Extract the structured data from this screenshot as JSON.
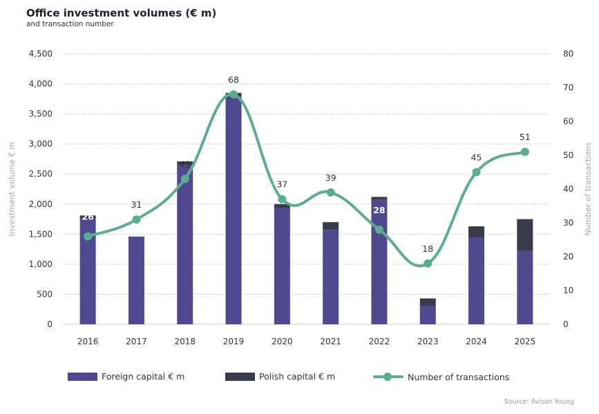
{
  "header": {
    "title": "Office investment volumes (€ m)",
    "subtitle": "and transaction number"
  },
  "source": "Source: Avison Young",
  "colors": {
    "foreign": "#51498f",
    "polish": "#373b4b",
    "transactions": "#5aae8f",
    "grid": "#cfcfcf"
  },
  "legend": {
    "foreign": "Foreign capital € m",
    "polish": "Polish capital € m",
    "transactions": "Number of transactions"
  },
  "chart_data": {
    "type": "bar",
    "title": "Office investment volumes (€ m)",
    "subtitle": "and transaction number",
    "categories": [
      "2016",
      "2017",
      "2018",
      "2019",
      "2020",
      "2021",
      "2022",
      "2023",
      "2024",
      "2025"
    ],
    "series": [
      {
        "name": "Foreign capital € m",
        "type": "bar",
        "stacked": true,
        "axis": "left",
        "values": [
          1760,
          1460,
          2650,
          3780,
          1940,
          1570,
          2070,
          310,
          1440,
          1220
        ]
      },
      {
        "name": "Polish capital € m",
        "type": "bar",
        "stacked": true,
        "axis": "left",
        "values": [
          50,
          0,
          60,
          70,
          60,
          130,
          50,
          120,
          190,
          530
        ]
      },
      {
        "name": "Number of transactions",
        "type": "line",
        "axis": "right",
        "smooth": true,
        "values": [
          26,
          31,
          43,
          68,
          37,
          39,
          28,
          18,
          45,
          51
        ]
      }
    ],
    "ylabel": "Investment volume € m",
    "y2label": "Number of transactions",
    "ylim": [
      0,
      4500
    ],
    "y2lim": [
      0,
      80
    ],
    "yticks": [
      "0",
      "500",
      "1,000",
      "1,500",
      "2,000",
      "2,500",
      "3,000",
      "3,500",
      "4,000",
      "4,500"
    ],
    "y2ticks": [
      "0",
      "10",
      "20",
      "30",
      "40",
      "50",
      "60",
      "70",
      "80"
    ],
    "grid": true,
    "legend_position": "bottom"
  }
}
